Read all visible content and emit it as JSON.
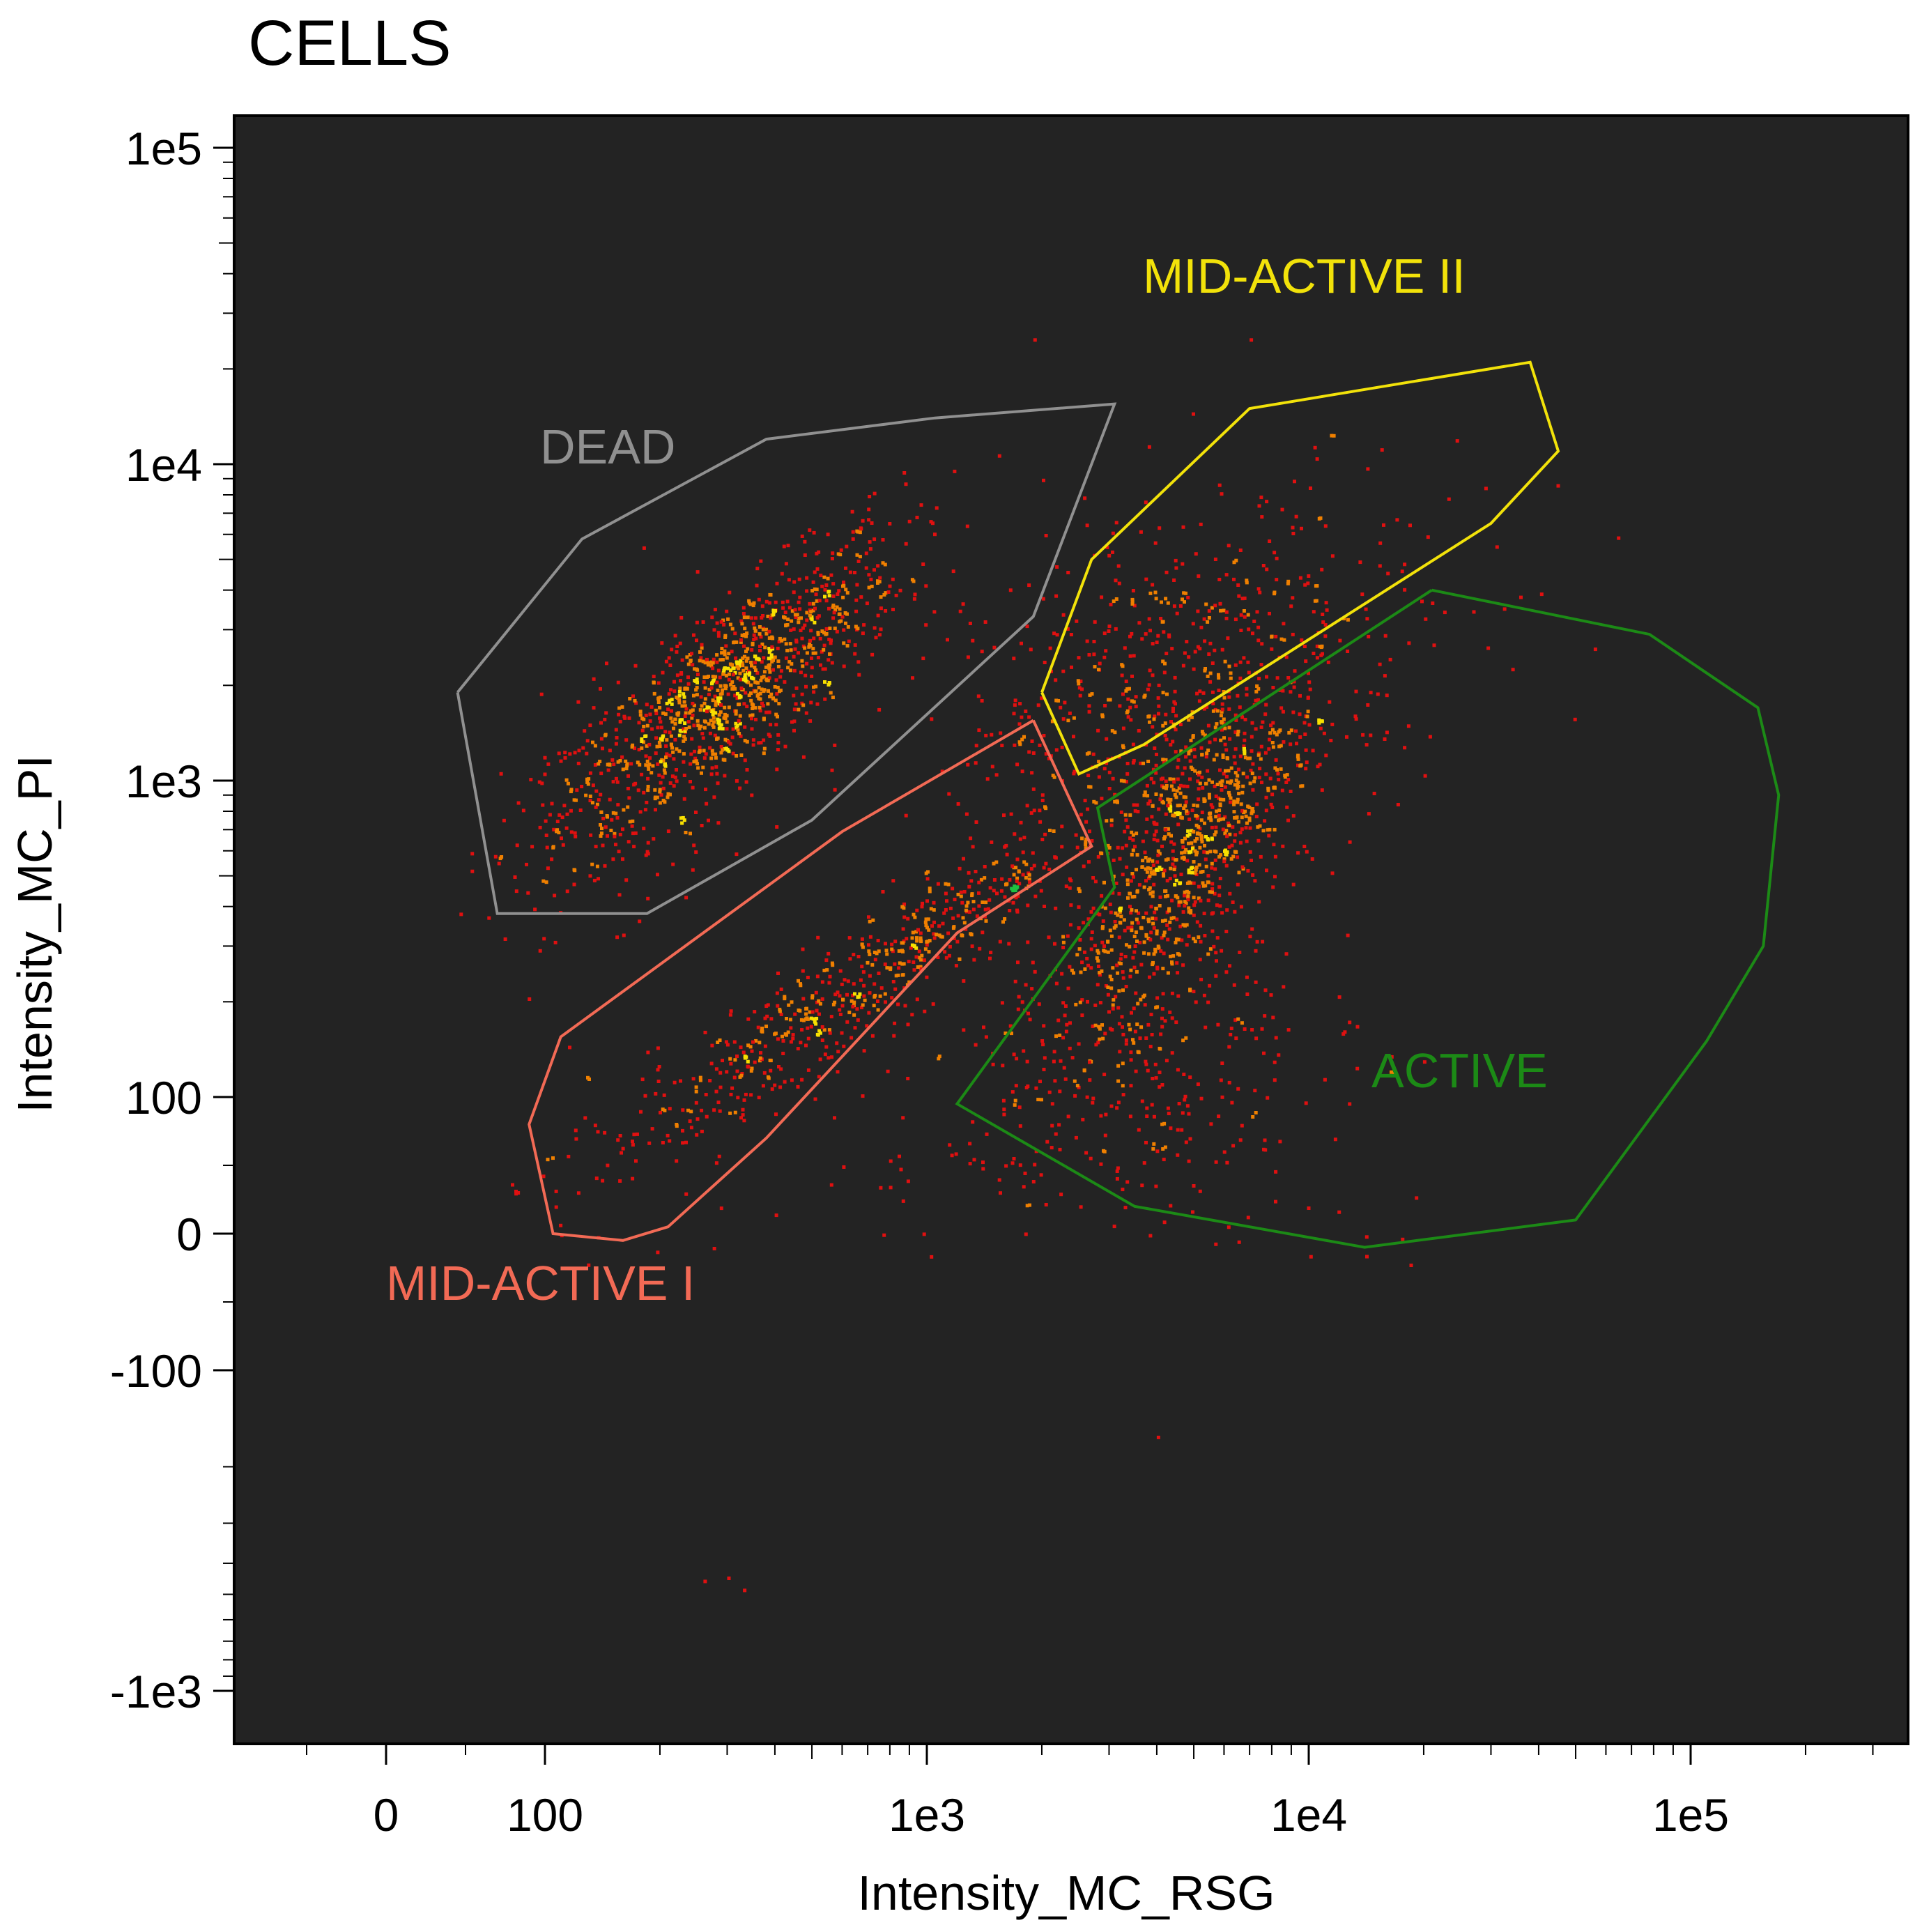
{
  "chart_data": {
    "type": "scatter",
    "title": "CELLS",
    "xlabel": "Intensity_MC_RSG",
    "ylabel": "Intensity_MC_PI",
    "x_scale": "biexponential",
    "y_scale": "biexponential",
    "xlim": [
      -50,
      350000
    ],
    "ylim": [
      -1800,
      125000
    ],
    "x_ticks": [
      {
        "value": 0,
        "label": "0"
      },
      {
        "value": 100,
        "label": "100"
      },
      {
        "value": 1000,
        "label": "1e3"
      },
      {
        "value": 10000,
        "label": "1e4"
      },
      {
        "value": 100000,
        "label": "1e5"
      }
    ],
    "y_ticks": [
      {
        "value": 100000,
        "label": "1e5"
      },
      {
        "value": 10000,
        "label": "1e4"
      },
      {
        "value": 1000,
        "label": "1e3"
      },
      {
        "value": 100,
        "label": "100"
      },
      {
        "value": 0,
        "label": "0"
      },
      {
        "value": -100,
        "label": "-100"
      },
      {
        "value": -1000,
        "label": "-1e3"
      }
    ],
    "background": "#232323",
    "density_colors": [
      "#e01010",
      "#f08000",
      "#f8e000",
      "#20c040",
      "#1020e0"
    ],
    "gates": [
      {
        "name": "DEAD",
        "color": "#909090",
        "vertices": [
          [
            45,
            1900
          ],
          [
            125,
            5800
          ],
          [
            380,
            12000
          ],
          [
            1050,
            14000
          ],
          [
            3100,
            15500
          ],
          [
            1900,
            3300
          ],
          [
            500,
            750
          ],
          [
            185,
            380
          ],
          [
            70,
            380
          ],
          [
            45,
            1900
          ]
        ]
      },
      {
        "name": "MID-ACTIVE II",
        "color": "#f2e20a",
        "vertices": [
          [
            2000,
            1900
          ],
          [
            2700,
            5000
          ],
          [
            7000,
            15000
          ],
          [
            38000,
            21000
          ],
          [
            45000,
            11000
          ],
          [
            30000,
            6500
          ],
          [
            3700,
            1300
          ],
          [
            2500,
            1050
          ],
          [
            2000,
            1900
          ]
        ]
      },
      {
        "name": "MID-ACTIVE I",
        "color": "#f26a55",
        "vertices": [
          [
            1900,
            1550
          ],
          [
            2700,
            620
          ],
          [
            1200,
            330
          ],
          [
            380,
            70
          ],
          [
            210,
            5
          ],
          [
            160,
            -5
          ],
          [
            105,
            0
          ],
          [
            90,
            80
          ],
          [
            110,
            155
          ],
          [
            600,
            690
          ],
          [
            1900,
            1550
          ]
        ]
      },
      {
        "name": "ACTIVE",
        "color": "#1c8a16",
        "vertices": [
          [
            21000,
            4000
          ],
          [
            78000,
            2900
          ],
          [
            150000,
            1700
          ],
          [
            170000,
            900
          ],
          [
            155000,
            300
          ],
          [
            110000,
            150
          ],
          [
            50000,
            10
          ],
          [
            14000,
            -10
          ],
          [
            3500,
            20
          ],
          [
            1200,
            95
          ],
          [
            3100,
            460
          ],
          [
            2800,
            820
          ],
          [
            21000,
            4000
          ]
        ]
      }
    ],
    "clusters": [
      {
        "cx": 310,
        "cy": 2000,
        "sx": 0.22,
        "sy": 0.24,
        "rho": 0.82,
        "n": 1100
      },
      {
        "cx": 160,
        "cy": 900,
        "sx": 0.2,
        "sy": 0.2,
        "rho": 0.4,
        "n": 140
      },
      {
        "cx": 4700,
        "cy": 600,
        "sx": 0.17,
        "sy": 0.28,
        "rho": 0.7,
        "n": 950
      },
      {
        "cx": 4000,
        "cy": 2200,
        "sx": 0.25,
        "sy": 0.25,
        "rho": 0.5,
        "n": 380
      },
      {
        "cx": 3600,
        "cy": 130,
        "sx": 0.22,
        "sy": 0.3,
        "rho": 0.2,
        "n": 300
      },
      {
        "cx": 700,
        "cy": 240,
        "sx": 0.34,
        "sy": 0.3,
        "rho": 0.95,
        "n": 620
      },
      {
        "cx": 6000,
        "cy": 2500,
        "sx": 0.4,
        "sy": 0.3,
        "rho": 0.3,
        "n": 200
      }
    ],
    "outliers": [
      [
        1900,
        25000
      ],
      [
        7000,
        25000
      ],
      [
        700,
        8000
      ],
      [
        260,
        -450
      ],
      [
        300,
        -440
      ],
      [
        330,
        -480
      ],
      [
        4000,
        -160
      ],
      [
        2000,
        9000
      ],
      [
        10000,
        8500
      ],
      [
        180,
        5500
      ],
      [
        140,
        40
      ],
      [
        600,
        50
      ]
    ]
  }
}
